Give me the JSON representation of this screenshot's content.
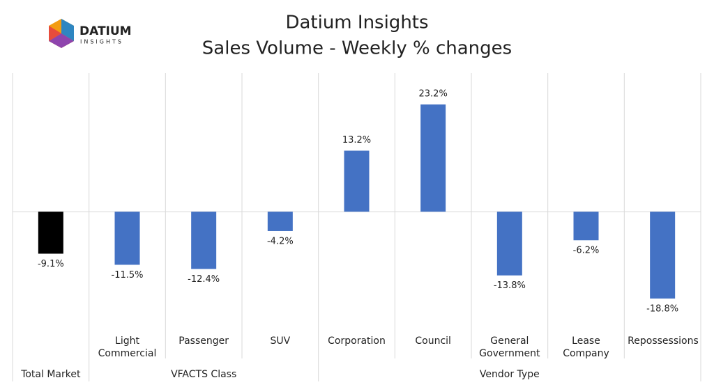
{
  "logo": {
    "name": "DATIUM",
    "tagline": "INSIGHTS"
  },
  "chart_data": {
    "type": "bar",
    "title": "Datium Insights",
    "subtitle": "Sales Volume - Weekly % changes",
    "categories": [
      null,
      "Light Commercial",
      "Passenger",
      "SUV",
      "Corporation",
      "Council",
      "General Government",
      "Lease Company",
      "Repossessions"
    ],
    "values": [
      -9.1,
      -11.5,
      -12.4,
      -4.2,
      13.2,
      23.2,
      -13.8,
      -6.2,
      -18.8
    ],
    "value_labels": [
      "-9.1%",
      "-11.5%",
      "-12.4%",
      "-4.2%",
      "13.2%",
      "23.2%",
      "-13.8%",
      "-6.2%",
      "-18.8%"
    ],
    "colors": [
      "#000000",
      "#4472c4",
      "#4472c4",
      "#4472c4",
      "#4472c4",
      "#4472c4",
      "#4472c4",
      "#4472c4",
      "#4472c4"
    ],
    "groups": [
      {
        "label": "Total Market",
        "count": 1
      },
      {
        "label": "VFACTS Class",
        "count": 3
      },
      {
        "label": "Vendor Type",
        "count": 5
      }
    ],
    "ylim": [
      -25,
      30
    ]
  }
}
